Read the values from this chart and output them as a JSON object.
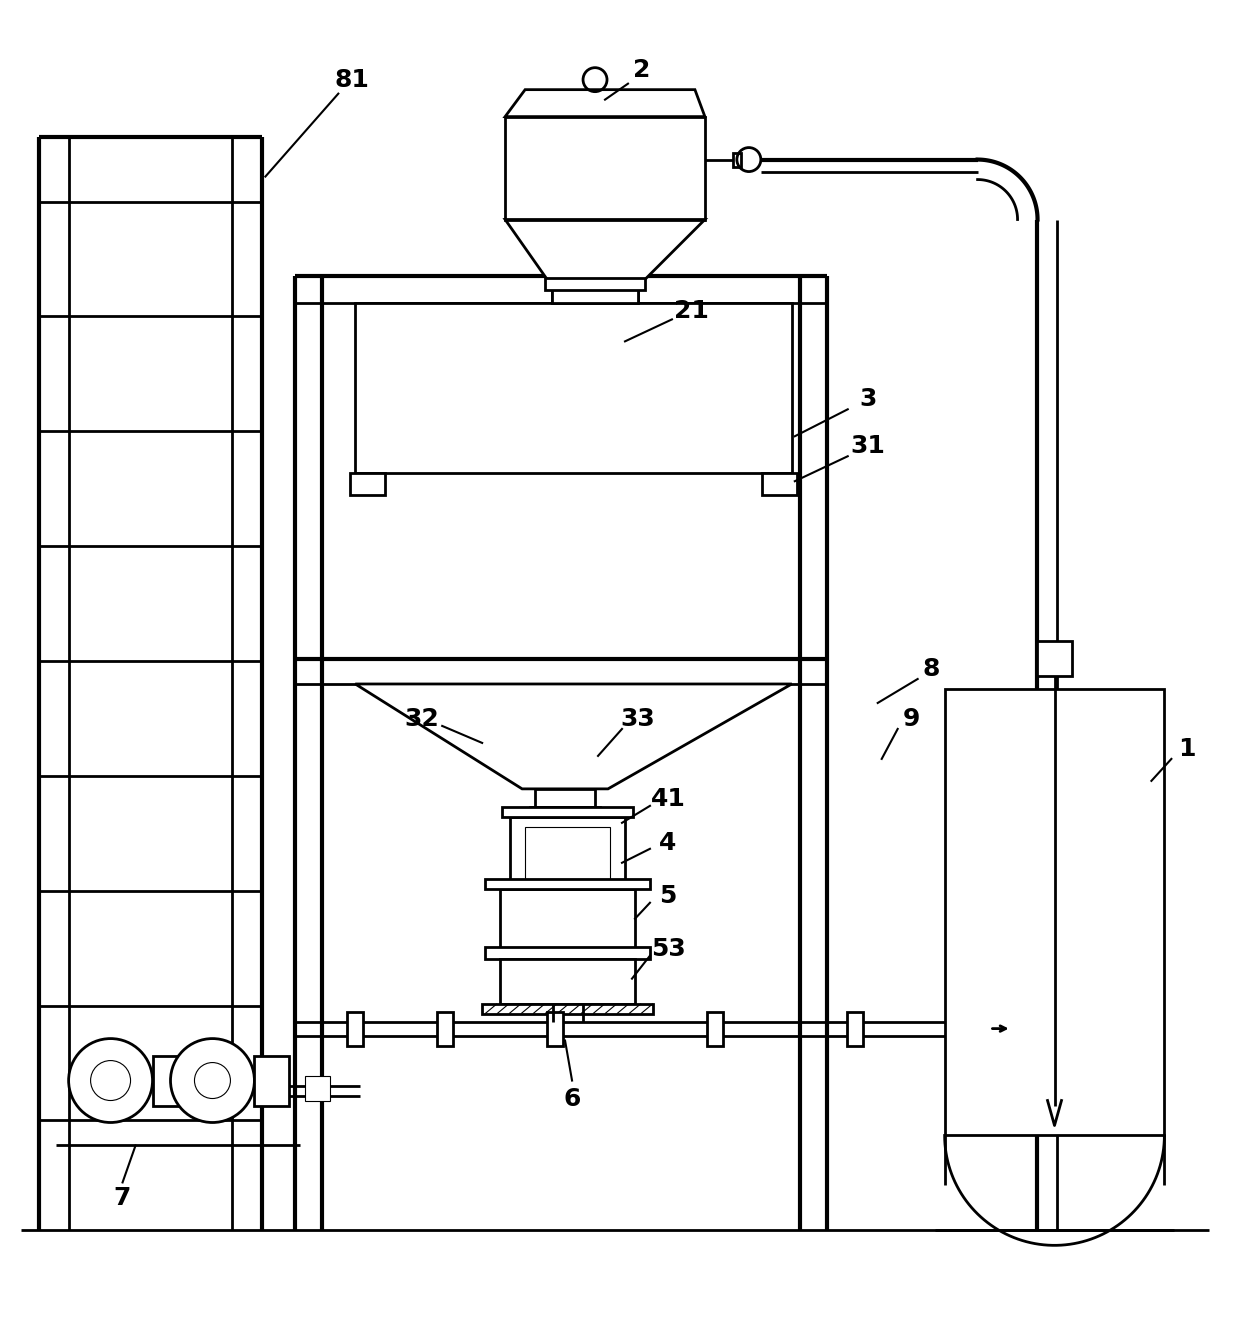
{
  "bg_color": "#ffffff",
  "lc": "#000000",
  "lw": 2.0,
  "lwt": 0.8,
  "lwk": 3.0,
  "fig_width": 12.4,
  "fig_height": 13.41,
  "dpi": 100
}
